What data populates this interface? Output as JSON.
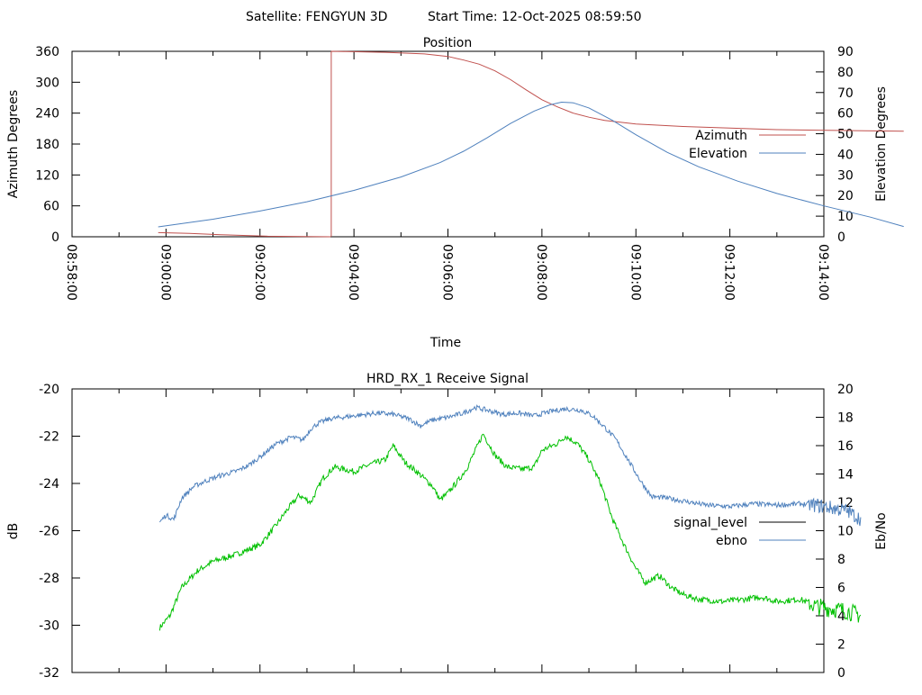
{
  "header": {
    "satellite": "Satellite: FENGYUN 3D",
    "start_time": "Start Time: 12-Oct-2025 08:59:50"
  },
  "chart_data": [
    {
      "type": "line",
      "title": "Position",
      "xlabel": "Time",
      "ylabel": "Azimuth Degrees",
      "y2label": "Elevation Degrees",
      "xlim_seconds_from_0858": [
        0,
        960
      ],
      "x_tick_labels": [
        "08:58:00",
        "09:00:00",
        "09:02:00",
        "09:04:00",
        "09:06:00",
        "09:08:00",
        "09:10:00",
        "09:12:00",
        "09:14:00"
      ],
      "ylim": [
        0,
        360
      ],
      "y_ticks": [
        "0",
        "60",
        "120",
        "180",
        "240",
        "300",
        "360"
      ],
      "y2lim": [
        0,
        90
      ],
      "y2_ticks": [
        "0",
        "10",
        "20",
        "30",
        "40",
        "50",
        "60",
        "70",
        "80",
        "90"
      ],
      "legend_position": "right",
      "series": [
        {
          "name": "Azimuth",
          "axis": "y",
          "color": "#c0504d",
          "points": [
            [
              110,
              8
            ],
            [
              150,
              6.5
            ],
            [
              190,
              4
            ],
            [
              250,
              1
            ],
            [
              330,
              0
            ],
            [
              331,
              360
            ],
            [
              350,
              359.5
            ],
            [
              400,
              358
            ],
            [
              450,
              355
            ],
            [
              480,
              350
            ],
            [
              500,
              343
            ],
            [
              520,
              335
            ],
            [
              540,
              322
            ],
            [
              560,
              305
            ],
            [
              580,
              285
            ],
            [
              600,
              266
            ],
            [
              620,
              252
            ],
            [
              640,
              240
            ],
            [
              660,
              232
            ],
            [
              680,
              226
            ],
            [
              720,
              219
            ],
            [
              780,
              214
            ],
            [
              840,
              211
            ],
            [
              900,
              208
            ],
            [
              1000,
              206
            ],
            [
              1062,
              205
            ]
          ]
        },
        {
          "name": "Elevation",
          "axis": "y2",
          "color": "#4f81bd",
          "points": [
            [
              110,
              4.8
            ],
            [
              180,
              8.5
            ],
            [
              240,
              12.5
            ],
            [
              300,
              17
            ],
            [
              360,
              22.5
            ],
            [
              420,
              29
            ],
            [
              470,
              36
            ],
            [
              500,
              41.5
            ],
            [
              530,
              48
            ],
            [
              560,
              55
            ],
            [
              590,
              61
            ],
            [
              610,
              64
            ],
            [
              625,
              65.3
            ],
            [
              640,
              65
            ],
            [
              660,
              62.5
            ],
            [
              690,
              56.5
            ],
            [
              720,
              49.5
            ],
            [
              760,
              41
            ],
            [
              800,
              34
            ],
            [
              850,
              27
            ],
            [
              900,
              21
            ],
            [
              960,
              15
            ],
            [
              1020,
              9.5
            ],
            [
              1062,
              5
            ]
          ]
        }
      ]
    },
    {
      "type": "line",
      "title": "HRD_RX_1 Receive Signal",
      "ylabel": "dB",
      "y2label": "Eb/No",
      "xlim_seconds_from_0858": [
        0,
        960
      ],
      "ylim": [
        -32,
        -20
      ],
      "y_ticks": [
        "-32",
        "-30",
        "-28",
        "-26",
        "-24",
        "-22",
        "-20"
      ],
      "y2lim": [
        0,
        20
      ],
      "y2_ticks": [
        "0",
        "2",
        "4",
        "6",
        "8",
        "10",
        "12",
        "14",
        "16",
        "18",
        "20"
      ],
      "legend_position": "right",
      "series": [
        {
          "name": "signal_level",
          "axis": "y",
          "color": "#00c000",
          "legend_color": "#000000",
          "points": [
            [
              112,
              -30.1
            ],
            [
              125,
              -29.6
            ],
            [
              140,
              -28.4
            ],
            [
              160,
              -27.7
            ],
            [
              180,
              -27.3
            ],
            [
              210,
              -27
            ],
            [
              240,
              -26.6
            ],
            [
              260,
              -25.8
            ],
            [
              275,
              -25.1
            ],
            [
              290,
              -24.5
            ],
            [
              305,
              -24.8
            ],
            [
              320,
              -23.8
            ],
            [
              335,
              -23.3
            ],
            [
              360,
              -23.5
            ],
            [
              380,
              -23.2
            ],
            [
              400,
              -23
            ],
            [
              410,
              -22.4
            ],
            [
              425,
              -23.1
            ],
            [
              440,
              -23.5
            ],
            [
              460,
              -24.1
            ],
            [
              470,
              -24.7
            ],
            [
              480,
              -24.4
            ],
            [
              495,
              -23.8
            ],
            [
              505,
              -23.3
            ],
            [
              515,
              -22.6
            ],
            [
              525,
              -21.9
            ],
            [
              540,
              -22.8
            ],
            [
              555,
              -23.3
            ],
            [
              575,
              -23.4
            ],
            [
              590,
              -23.3
            ],
            [
              600,
              -22.6
            ],
            [
              620,
              -22.3
            ],
            [
              630,
              -22
            ],
            [
              645,
              -22.3
            ],
            [
              660,
              -23
            ],
            [
              675,
              -24
            ],
            [
              690,
              -25.5
            ],
            [
              705,
              -26.6
            ],
            [
              720,
              -27.6
            ],
            [
              732,
              -28.2
            ],
            [
              750,
              -27.9
            ],
            [
              765,
              -28.4
            ],
            [
              780,
              -28.7
            ],
            [
              800,
              -28.9
            ],
            [
              830,
              -29
            ],
            [
              860,
              -28.9
            ],
            [
              880,
              -28.8
            ],
            [
              900,
              -29
            ],
            [
              930,
              -28.9
            ],
            [
              950,
              -29.2
            ],
            [
              970,
              -29.3
            ],
            [
              990,
              -29.4
            ],
            [
              1008,
              -29.6
            ]
          ]
        },
        {
          "name": "ebno",
          "axis": "y2",
          "color": "#4f81bd",
          "legend_color": "#4f81bd",
          "points": [
            [
              112,
              10.6
            ],
            [
              120,
              11.1
            ],
            [
              130,
              10.8
            ],
            [
              140,
              12.3
            ],
            [
              155,
              13.1
            ],
            [
              170,
              13.5
            ],
            [
              190,
              13.9
            ],
            [
              210,
              14.2
            ],
            [
              225,
              14.6
            ],
            [
              240,
              15.2
            ],
            [
              260,
              16.1
            ],
            [
              280,
              16.6
            ],
            [
              295,
              16.4
            ],
            [
              305,
              17.2
            ],
            [
              315,
              17.6
            ],
            [
              330,
              17.9
            ],
            [
              360,
              18.1
            ],
            [
              390,
              18.3
            ],
            [
              410,
              18.2
            ],
            [
              430,
              17.9
            ],
            [
              445,
              17.4
            ],
            [
              460,
              17.8
            ],
            [
              480,
              18
            ],
            [
              500,
              18.3
            ],
            [
              515,
              18.7
            ],
            [
              530,
              18.5
            ],
            [
              550,
              18.2
            ],
            [
              570,
              18.3
            ],
            [
              590,
              18.1
            ],
            [
              610,
              18.4
            ],
            [
              630,
              18.6
            ],
            [
              650,
              18.5
            ],
            [
              665,
              18.1
            ],
            [
              680,
              17.3
            ],
            [
              695,
              16.4
            ],
            [
              710,
              15
            ],
            [
              725,
              13.6
            ],
            [
              740,
              12.4
            ],
            [
              760,
              12.3
            ],
            [
              780,
              12.1
            ],
            [
              810,
              11.8
            ],
            [
              840,
              11.7
            ],
            [
              870,
              11.9
            ],
            [
              900,
              11.8
            ],
            [
              930,
              11.9
            ],
            [
              950,
              11.8
            ],
            [
              970,
              11.6
            ],
            [
              990,
              11.4
            ],
            [
              1008,
              10.8
            ]
          ]
        }
      ]
    }
  ]
}
